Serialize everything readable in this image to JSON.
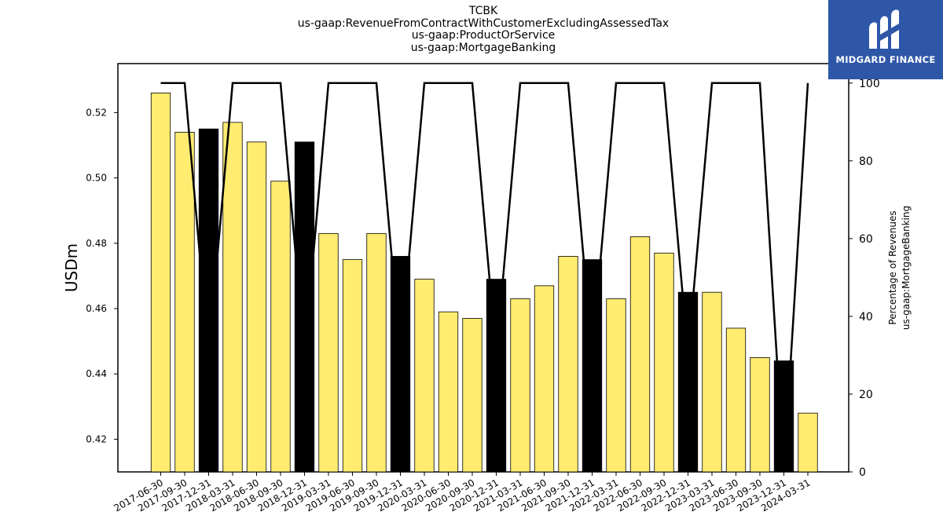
{
  "header": {
    "title_lines": [
      "TCBK",
      "us-gaap:RevenueFromContractWithCustomerExcludingAssessedTax",
      "us-gaap:ProductOrService",
      "us-gaap:MortgageBanking"
    ]
  },
  "logo": {
    "text": "MIDGARD FINANCE",
    "icon": "midgard-logo-icon",
    "color": "#2f57a8"
  },
  "colors": {
    "bar": "#ffec70",
    "bar_highlight": "#000000",
    "line": "#000000"
  },
  "chart_data": {
    "type": "bar",
    "categories": [
      "2017-06-30",
      "2017-09-30",
      "2017-12-31",
      "2018-03-31",
      "2018-06-30",
      "2018-09-30",
      "2018-12-31",
      "2019-03-31",
      "2019-06-30",
      "2019-09-30",
      "2019-12-31",
      "2020-03-31",
      "2020-06-30",
      "2020-09-30",
      "2020-12-31",
      "2021-03-31",
      "2021-06-30",
      "2021-09-30",
      "2021-12-31",
      "2022-03-31",
      "2022-06-30",
      "2022-09-30",
      "2022-12-31",
      "2023-03-31",
      "2023-06-30",
      "2023-09-30",
      "2023-12-31",
      "2024-03-31"
    ],
    "values": [
      0.526,
      0.514,
      0.515,
      0.517,
      0.511,
      0.499,
      0.511,
      0.483,
      0.475,
      0.483,
      0.476,
      0.469,
      0.459,
      0.457,
      0.469,
      0.463,
      0.467,
      0.476,
      0.475,
      0.463,
      0.482,
      0.477,
      0.465,
      0.465,
      0.454,
      0.445,
      0.444,
      0.428
    ],
    "highlight": [
      false,
      false,
      true,
      false,
      false,
      false,
      true,
      false,
      false,
      false,
      true,
      false,
      false,
      false,
      true,
      false,
      false,
      false,
      true,
      false,
      false,
      false,
      true,
      false,
      false,
      false,
      true,
      false
    ],
    "percentage": [
      100,
      100,
      30,
      100,
      100,
      100,
      30,
      100,
      100,
      100,
      30,
      100,
      100,
      100,
      30,
      100,
      100,
      100,
      30,
      100,
      100,
      100,
      30,
      100,
      100,
      100,
      0,
      100
    ],
    "ylabel": "USDm",
    "y2label_lines": [
      "Percentage of Revenues",
      "us-gaap:MortgageBanking"
    ],
    "ylim": [
      0.41,
      0.535
    ],
    "yticks": [
      "0.42",
      "0.44",
      "0.46",
      "0.48",
      "0.50",
      "0.52"
    ],
    "y2lim": [
      0,
      105
    ],
    "y2ticks": [
      "0",
      "20",
      "40",
      "60",
      "80",
      "100"
    ]
  }
}
